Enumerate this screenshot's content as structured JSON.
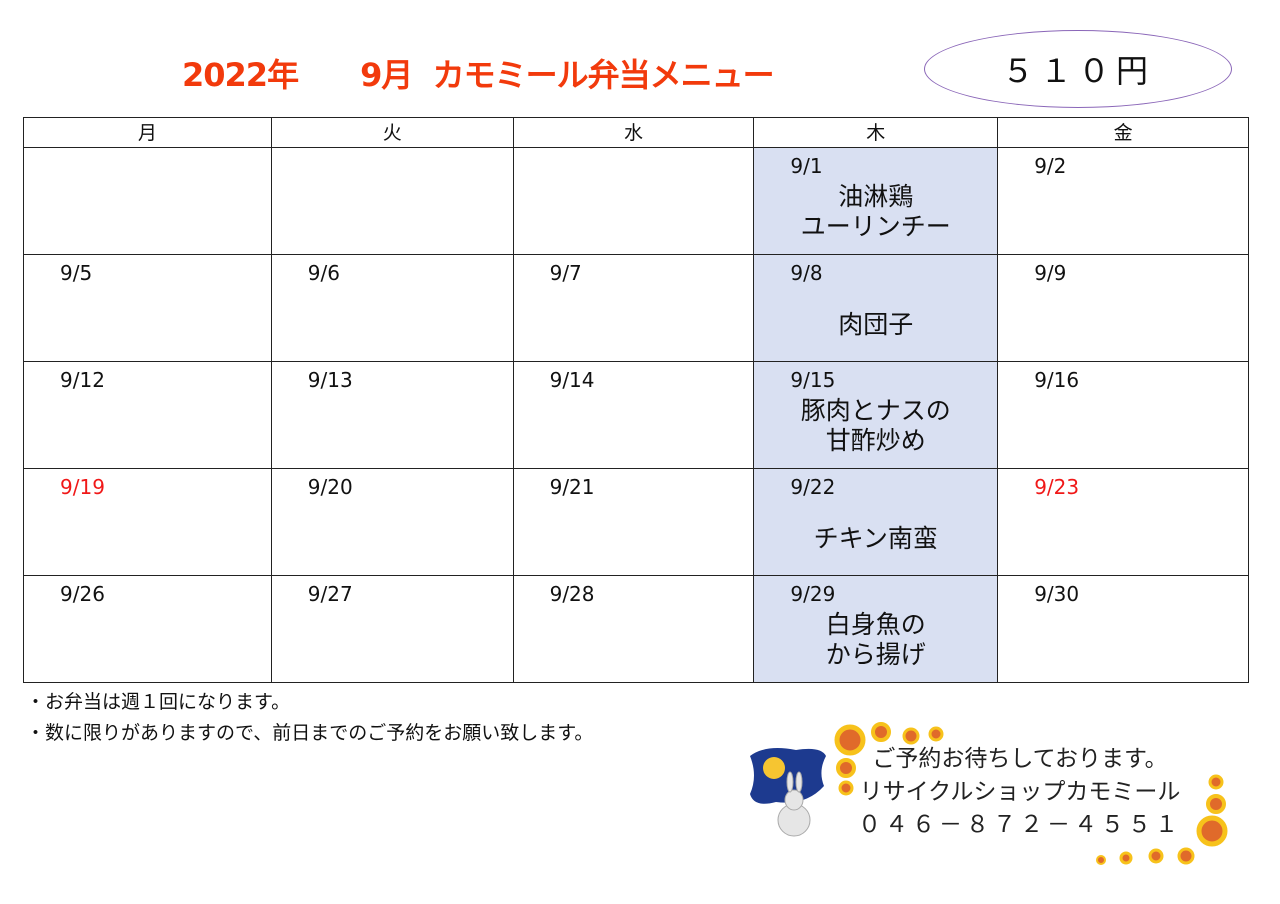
{
  "title": "2022年　　9月  カモミール弁当メニュー",
  "price": "５１０円",
  "weekdays": [
    "月",
    "火",
    "水",
    "木",
    "金"
  ],
  "weeks": [
    [
      {
        "date": ""
      },
      {
        "date": ""
      },
      {
        "date": ""
      },
      {
        "date": "9/1",
        "menu": [
          "油淋鶏",
          "ユーリンチー"
        ]
      },
      {
        "date": "9/2"
      }
    ],
    [
      {
        "date": "9/5"
      },
      {
        "date": "9/6"
      },
      {
        "date": "9/7"
      },
      {
        "date": "9/8",
        "menu": [
          "肉団子"
        ]
      },
      {
        "date": "9/9"
      }
    ],
    [
      {
        "date": "9/12"
      },
      {
        "date": "9/13"
      },
      {
        "date": "9/14"
      },
      {
        "date": "9/15",
        "menu": [
          "豚肉とナスの",
          "甘酢炒め"
        ]
      },
      {
        "date": "9/16"
      }
    ],
    [
      {
        "date": "9/19",
        "holiday": true
      },
      {
        "date": "9/20"
      },
      {
        "date": "9/21"
      },
      {
        "date": "9/22",
        "menu": [
          "チキン南蛮"
        ]
      },
      {
        "date": "9/23",
        "holiday": true
      }
    ],
    [
      {
        "date": "9/26"
      },
      {
        "date": "9/27"
      },
      {
        "date": "9/28"
      },
      {
        "date": "9/29",
        "menu": [
          "白身魚の",
          "から揚げ"
        ]
      },
      {
        "date": "9/30"
      }
    ]
  ],
  "notes": [
    "・お弁当は週１回になります。",
    "・数に限りがありますので、前日までのご予約をお願い致します。"
  ],
  "shop": {
    "line1": "ご予約お待ちしております。",
    "line2": "リサイクルショップカモミール",
    "phone": "０４６－８７２－４５５１"
  },
  "colors": {
    "title": "#f23a0c",
    "holiday": "#f01818",
    "highlight": "#d9e0f2"
  }
}
